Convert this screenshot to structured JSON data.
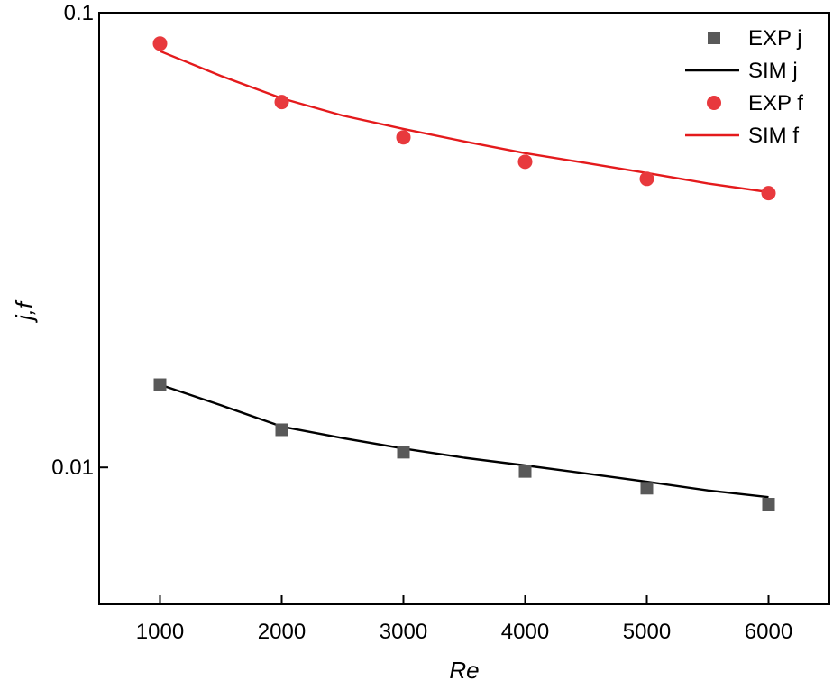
{
  "chart_data": {
    "type": "scatter",
    "xlabel": "Re",
    "ylabel": "j,f",
    "xlim": [
      500,
      6500
    ],
    "ylim": [
      0.005,
      0.1
    ],
    "yscale": "log",
    "xticks": [
      1000,
      2000,
      3000,
      4000,
      5000,
      6000
    ],
    "xtick_labels": [
      "1000",
      "2000",
      "3000",
      "4000",
      "5000",
      "6000"
    ],
    "yticks": [
      0.01,
      0.1
    ],
    "ytick_labels": [
      "0.01",
      "0.1"
    ],
    "grid": false,
    "legend_position": "top-right",
    "x": [
      1000,
      2000,
      3000,
      4000,
      5000,
      6000
    ],
    "series": [
      {
        "name": "EXP j",
        "kind": "marker",
        "marker": "square",
        "color": "#595959",
        "values": [
          0.0152,
          0.0121,
          0.0108,
          0.0098,
          0.009,
          0.0083
        ]
      },
      {
        "name": "SIM j",
        "kind": "line",
        "color": "#000000",
        "x": [
          1000,
          1500,
          2000,
          2500,
          3000,
          3500,
          4000,
          4500,
          5000,
          5500,
          6000
        ],
        "values": [
          0.0152,
          0.0137,
          0.0123,
          0.0116,
          0.011,
          0.0105,
          0.0101,
          0.0097,
          0.0093,
          0.0089,
          0.0086
        ]
      },
      {
        "name": "EXP f",
        "kind": "marker",
        "marker": "circle",
        "color": "#e8393d",
        "values": [
          0.0855,
          0.0636,
          0.0532,
          0.047,
          0.0431,
          0.0401
        ]
      },
      {
        "name": "SIM f",
        "kind": "line",
        "color": "#e41a1c",
        "x": [
          1000,
          1500,
          2000,
          2500,
          3000,
          3500,
          4000,
          4500,
          5000,
          5500,
          6000
        ],
        "values": [
          0.0823,
          0.0726,
          0.0648,
          0.0594,
          0.0555,
          0.0521,
          0.0491,
          0.0467,
          0.0444,
          0.0421,
          0.0403
        ]
      }
    ]
  }
}
